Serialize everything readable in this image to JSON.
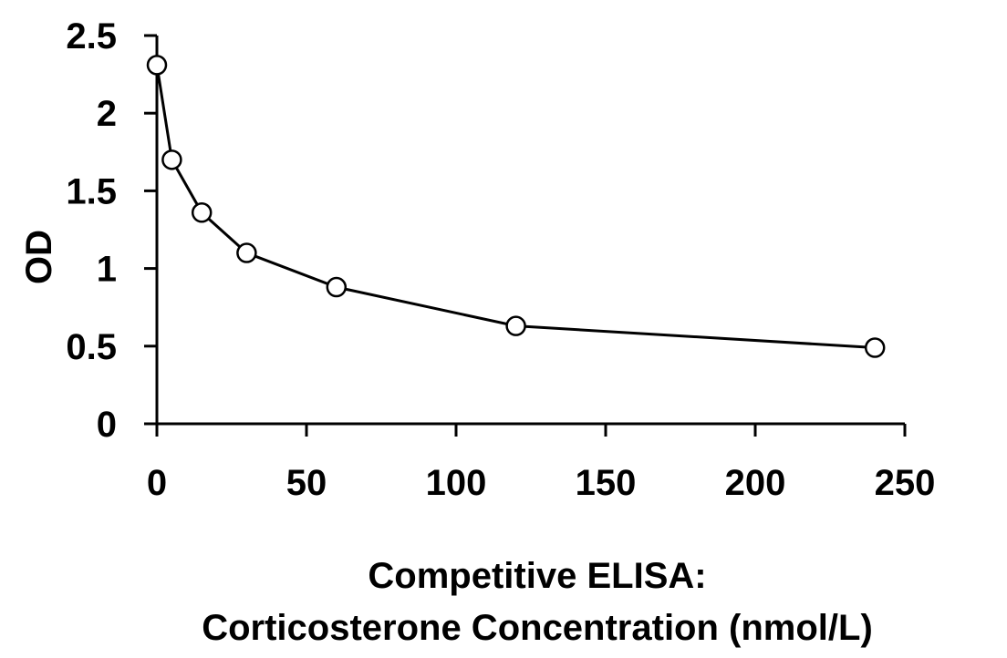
{
  "chart_data": {
    "type": "line",
    "x": [
      0,
      5,
      15,
      30,
      60,
      120,
      240
    ],
    "series": [
      {
        "values": [
          2.31,
          1.7,
          1.36,
          1.1,
          0.88,
          0.63,
          0.49
        ]
      }
    ],
    "xlabel_lines": [
      "Competitive ELISA:",
      "Corticosterone Concentration (nmol/L)"
    ],
    "ylabel": "OD",
    "xlim": [
      0,
      250
    ],
    "ylim": [
      0,
      2.5
    ],
    "x_ticks": [
      "0",
      "50",
      "100",
      "150",
      "200",
      "250"
    ],
    "y_ticks": [
      "0",
      "0.5",
      "1",
      "1.5",
      "2",
      "2.5"
    ],
    "grid": false,
    "legend": "none",
    "marker": "open-circle",
    "line_color": "#000000"
  }
}
